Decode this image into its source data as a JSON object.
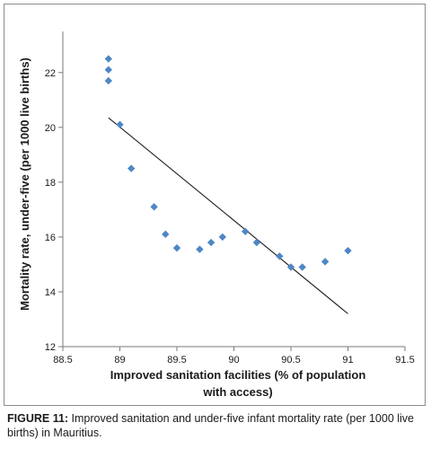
{
  "chart_data": {
    "type": "scatter",
    "xlabel_lines": [
      "Improved sanitation facilities (% of population",
      "with access)"
    ],
    "ylabel": "Mortality rate, under-five (per 1000 live births)",
    "xlim": [
      88.5,
      91.5
    ],
    "ylim": [
      12,
      23.5
    ],
    "x_ticks": [
      "88.5",
      "89",
      "89.5",
      "90",
      "90.5",
      "91",
      "91.5"
    ],
    "y_ticks": [
      "12",
      "14",
      "16",
      "18",
      "20",
      "22"
    ],
    "grid": false,
    "legend": "none",
    "marker": "diamond",
    "marker_color": "#4f86c6",
    "trendline_color": "#1a1a1a",
    "points": [
      {
        "x": 88.9,
        "y": 22.5
      },
      {
        "x": 88.9,
        "y": 22.1
      },
      {
        "x": 88.9,
        "y": 21.7
      },
      {
        "x": 89.0,
        "y": 20.1
      },
      {
        "x": 89.1,
        "y": 18.5
      },
      {
        "x": 89.3,
        "y": 17.1
      },
      {
        "x": 89.4,
        "y": 16.1
      },
      {
        "x": 89.5,
        "y": 15.6
      },
      {
        "x": 89.7,
        "y": 15.55
      },
      {
        "x": 89.8,
        "y": 15.8
      },
      {
        "x": 89.9,
        "y": 16.0
      },
      {
        "x": 90.1,
        "y": 16.2
      },
      {
        "x": 90.2,
        "y": 15.8
      },
      {
        "x": 90.4,
        "y": 15.3
      },
      {
        "x": 90.5,
        "y": 14.9
      },
      {
        "x": 90.6,
        "y": 14.9
      },
      {
        "x": 90.8,
        "y": 15.1
      },
      {
        "x": 91.0,
        "y": 15.5
      }
    ],
    "trendline": {
      "x": [
        88.9,
        91.0
      ],
      "y": [
        20.35,
        13.2
      ]
    }
  },
  "caption": {
    "label": "FIGURE 11:",
    "text": " Improved sanitation and under-five infant mortality rate (per 1000 live births) in Mauritius."
  }
}
